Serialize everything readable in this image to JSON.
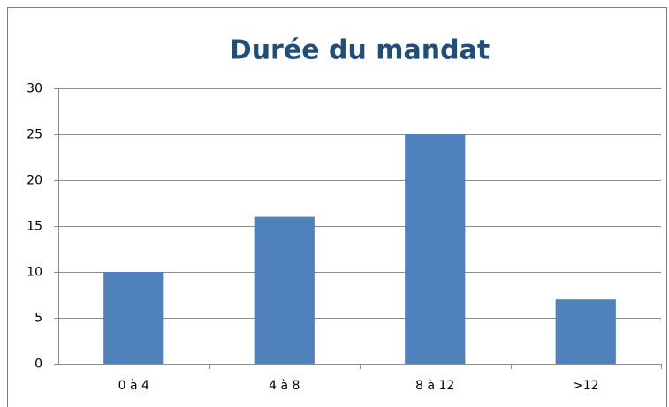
{
  "chart_data": {
    "type": "bar",
    "title": "Durée du mandat",
    "categories": [
      "0 à 4",
      "4 à 8",
      "8 à 12",
      ">12"
    ],
    "values": [
      10,
      16,
      25,
      7
    ],
    "color": "#4f81bd",
    "ylim": [
      0,
      30
    ],
    "yticks": [
      0,
      5,
      10,
      15,
      20,
      25,
      30
    ],
    "grid": true
  }
}
